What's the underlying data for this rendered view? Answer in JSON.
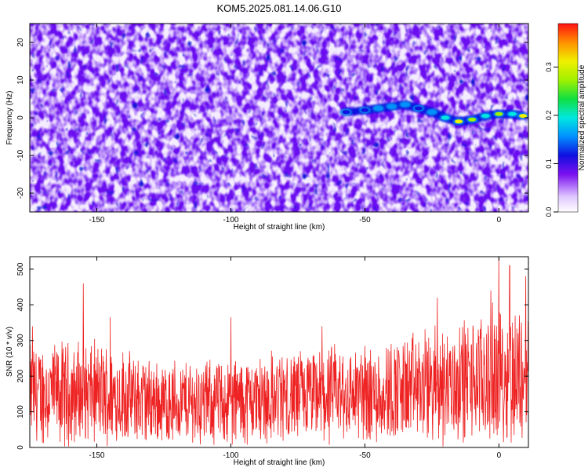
{
  "title": "KOM5.2025.081.14.06.G10",
  "chart_data": [
    {
      "type": "heatmap",
      "xlabel": "Height of straight line (km)",
      "ylabel": "Frequency (Hz)",
      "xlim": [
        -175,
        11
      ],
      "ylim": [
        -25,
        25
      ],
      "xticks": [
        -150,
        -100,
        -50,
        0
      ],
      "yticks": [
        -20,
        -10,
        0,
        10,
        20
      ],
      "colorbar": {
        "label": "Normalized spectral amplitude",
        "range": [
          0,
          0.39
        ],
        "ticks": [
          0.0,
          0.1,
          0.2,
          0.3
        ],
        "tick_labels": [
          "0.0",
          "0.1",
          "0.2",
          "0.3"
        ]
      },
      "signal_track": {
        "x": [
          -57,
          -50,
          -45,
          -40,
          -35,
          -30,
          -25,
          -20,
          -15,
          -10,
          -5,
          0,
          5,
          9
        ],
        "y": [
          1.5,
          2,
          2.5,
          3,
          3.5,
          2.5,
          1.5,
          0,
          -1,
          -0.5,
          0.5,
          1,
          1,
          0.5
        ],
        "amplitude": [
          0.12,
          0.15,
          0.18,
          0.17,
          0.16,
          0.15,
          0.17,
          0.2,
          0.33,
          0.28,
          0.2,
          0.3,
          0.22,
          0.32
        ]
      }
    },
    {
      "type": "line",
      "xlabel": "Height of straight line (km)",
      "ylabel": "SNR (10 * v/v)",
      "xlim": [
        -175,
        11
      ],
      "ylim": [
        0,
        535
      ],
      "xticks": [
        -150,
        -100,
        -50,
        0
      ],
      "yticks": [
        0,
        100,
        200,
        300,
        400,
        500
      ],
      "series": [
        {
          "color": "#ee2222",
          "envelope_x": [
            -175,
            -150,
            -125,
            -100,
            -75,
            -50,
            -25,
            0,
            11
          ],
          "envelope_mean": [
            150,
            150,
            125,
            130,
            140,
            150,
            170,
            200,
            210
          ],
          "peaks": [
            [
              -174,
              340
            ],
            [
              -155,
              460
            ],
            [
              -145,
              365
            ],
            [
              -100,
              365
            ],
            [
              -66,
              340
            ],
            [
              -23,
              420
            ],
            [
              -3,
              440
            ],
            [
              0,
              535
            ],
            [
              4,
              510
            ],
            [
              10,
              480
            ]
          ]
        }
      ]
    }
  ]
}
